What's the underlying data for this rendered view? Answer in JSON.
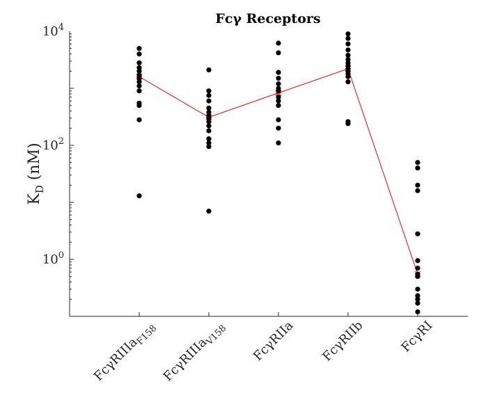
{
  "chart_data": {
    "type": "scatter",
    "title": "Fcγ Receptors",
    "ylabel": {
      "main": "K",
      "sub": "D",
      "rest": " (nM)"
    },
    "y_scale": "log",
    "ylim": [
      0.1,
      10000
    ],
    "yticks": [
      {
        "value": 1,
        "base": "10",
        "exp": "0"
      },
      {
        "value": 100,
        "base": "10",
        "exp": "2"
      },
      {
        "value": 10000,
        "base": "10",
        "exp": "4"
      }
    ],
    "categories": [
      {
        "main": "FcγRIIIa",
        "sub": "F158"
      },
      {
        "main": "FcγRIIIa",
        "sub": "V158"
      },
      {
        "main": "FcγRIIa",
        "sub": ""
      },
      {
        "main": "FcγRIIb",
        "sub": ""
      },
      {
        "main": "FcγRI",
        "sub": ""
      }
    ],
    "series": [
      {
        "values": [
          [
            5000,
            4000,
            2800,
            2300,
            2000,
            1700,
            1500,
            1300,
            1100,
            900,
            550,
            500,
            280,
            13
          ],
          [
            2100,
            900,
            750,
            600,
            450,
            380,
            330,
            300,
            260,
            220,
            180,
            130,
            110,
            95,
            7
          ],
          [
            6200,
            4200,
            1900,
            1500,
            1200,
            1000,
            900,
            700,
            600,
            500,
            280,
            200,
            110
          ],
          [
            9000,
            7500,
            6000,
            4700,
            3800,
            3200,
            2800,
            2500,
            2200,
            2000,
            1800,
            1600,
            1300,
            260,
            240
          ],
          [
            50,
            40,
            20,
            16,
            2.8,
            0.95,
            0.7,
            0.55,
            0.5,
            0.3,
            0.23,
            0.2,
            0.17,
            0.12
          ]
        ]
      },
      {
        "values": [
          1600,
          310,
          830,
          2200,
          0.55
        ]
      }
    ],
    "colors": {
      "points": "#000000",
      "median_line": "#ff0000"
    },
    "grid": false
  }
}
